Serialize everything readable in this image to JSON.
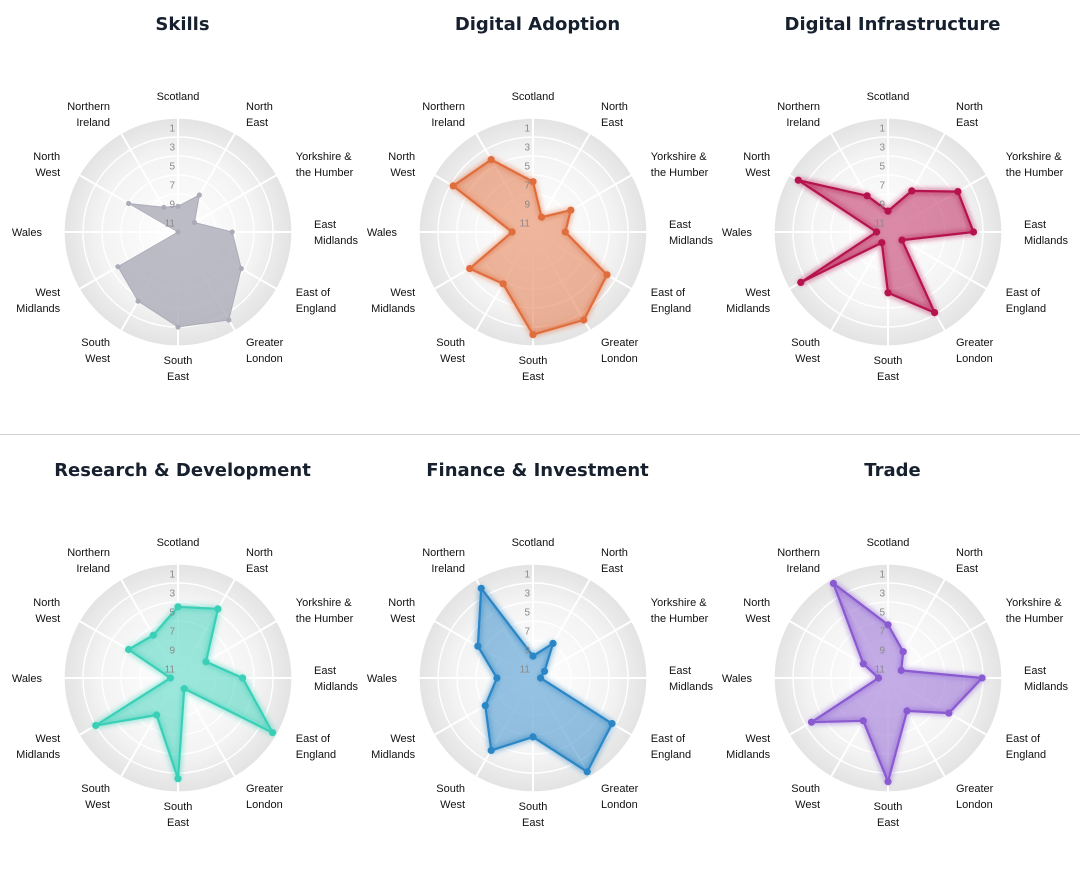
{
  "chart_data": [
    {
      "type": "radar",
      "title": "Skills",
      "color": "#a9a9b6",
      "categories": [
        "Scotland",
        "North East",
        "Yorkshire & the Humber",
        "East Midlands",
        "East of England",
        "Greater London",
        "South East",
        "South West",
        "West Midlands",
        "Wales",
        "North West",
        "Northern Ireland"
      ],
      "radial_ticks": [
        1,
        3,
        5,
        7,
        9,
        11
      ],
      "radial_range": [
        12,
        0
      ],
      "values": [
        9.3,
        7.5,
        10.0,
        6.3,
        4.3,
        1.3,
        2.0,
        3.6,
        4.7,
        12.0,
        6.0,
        9.0
      ]
    },
    {
      "type": "radar",
      "title": "Digital Adoption",
      "color": "#e06d3c",
      "categories": [
        "Scotland",
        "North East",
        "Yorkshire & the Humber",
        "East Midlands",
        "East of England",
        "Greater London",
        "South East",
        "South West",
        "West Midlands",
        "Wales",
        "North West",
        "Northern Ireland"
      ],
      "radial_ticks": [
        1,
        3,
        5,
        7,
        9,
        11
      ],
      "radial_range": [
        12,
        0
      ],
      "values": [
        6.7,
        10.2,
        7.4,
        8.6,
        3.0,
        1.3,
        1.2,
        5.7,
        4.3,
        9.8,
        2.3,
        3.2
      ]
    },
    {
      "type": "radar",
      "title": "Digital Infrastructure",
      "color": "#b5134d",
      "categories": [
        "Scotland",
        "North East",
        "Yorkshire & the Humber",
        "East Midlands",
        "East of England",
        "Greater London",
        "South East",
        "South West",
        "West Midlands",
        "Wales",
        "North West",
        "Northern Ireland"
      ],
      "radial_ticks": [
        1,
        3,
        5,
        7,
        9,
        11
      ],
      "radial_range": [
        12,
        0
      ],
      "values": [
        9.8,
        7.0,
        3.5,
        3.0,
        10.3,
        2.2,
        5.6,
        10.7,
        1.4,
        10.8,
        1.1,
        7.6
      ]
    },
    {
      "type": "radar",
      "title": "Research & Development",
      "color": "#3ad0b7",
      "categories": [
        "Scotland",
        "North East",
        "Yorkshire & the Humber",
        "East Midlands",
        "East of England",
        "Greater London",
        "South East",
        "South West",
        "West Midlands",
        "Wales",
        "North West",
        "Northern Ireland"
      ],
      "radial_ticks": [
        1,
        3,
        5,
        7,
        9,
        11
      ],
      "radial_range": [
        12,
        0
      ],
      "values": [
        4.5,
        3.6,
        8.6,
        5.2,
        0.5,
        10.7,
        1.4,
        7.5,
        2.0,
        11.2,
        6.0,
        6.8
      ]
    },
    {
      "type": "radar",
      "title": "Finance & Investment",
      "color": "#2b86c5",
      "categories": [
        "Scotland",
        "North East",
        "Yorkshire & the Humber",
        "East Midlands",
        "East of England",
        "Greater London",
        "South East",
        "South West",
        "West Midlands",
        "Wales",
        "North West",
        "Northern Ireland"
      ],
      "radial_ticks": [
        1,
        3,
        5,
        7,
        9,
        11
      ],
      "radial_range": [
        12,
        0
      ],
      "values": [
        9.7,
        7.8,
        10.6,
        11.2,
        2.4,
        0.6,
        5.8,
        3.2,
        6.2,
        8.2,
        5.3,
        1.1
      ]
    },
    {
      "type": "radar",
      "title": "Trade",
      "color": "#8a5ad0",
      "categories": [
        "Scotland",
        "North East",
        "Yorkshire & the Humber",
        "East Midlands",
        "East of England",
        "Greater London",
        "South East",
        "South West",
        "West Midlands",
        "Wales",
        "North West",
        "Northern Ireland"
      ],
      "radial_ticks": [
        1,
        3,
        5,
        7,
        9,
        11
      ],
      "radial_range": [
        12,
        0
      ],
      "values": [
        6.4,
        8.8,
        10.4,
        2.1,
        4.6,
        8.0,
        1.1,
        6.8,
        2.7,
        11.0,
        9.0,
        0.5
      ]
    }
  ]
}
